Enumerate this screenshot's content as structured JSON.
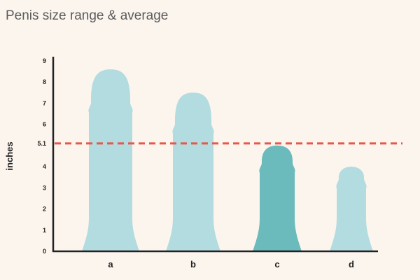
{
  "chart_data": {
    "type": "bar",
    "title": "Penis size range & average",
    "xlabel": "",
    "ylabel": "inches",
    "categories": [
      "a",
      "b",
      "c",
      "d"
    ],
    "values": [
      8.6,
      7.5,
      5.0,
      4.0
    ],
    "highlighted_category": "c",
    "ylim": [
      0,
      9
    ],
    "yticks": [
      "0",
      "1",
      "2",
      "3",
      "4",
      "5.1",
      "6",
      "7",
      "8",
      "9"
    ],
    "ytick_values": [
      0,
      1,
      2,
      3,
      4,
      5.1,
      6,
      7,
      8,
      9
    ],
    "reference_line": {
      "value": 5.1,
      "style": "dashed",
      "color": "#e8574a"
    },
    "grid": false,
    "legend": "none",
    "colors": {
      "bar": "#b2dcdf",
      "highlight": "#6bbbbd",
      "axis": "#222222",
      "background": "#fbf5ee"
    }
  }
}
